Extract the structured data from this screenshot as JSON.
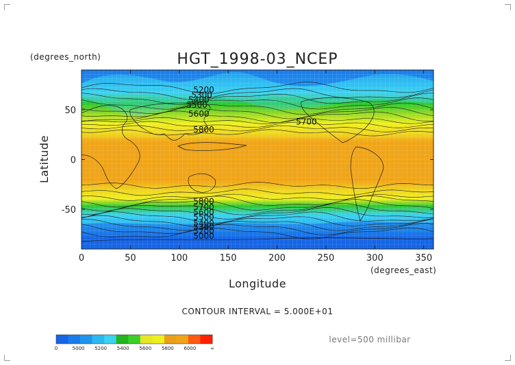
{
  "title": "HGT_1998-03_NCEP",
  "y_unit_label": "(degrees_north)",
  "x_unit_label": "(degrees_east)",
  "y_axis_title": "Latitude",
  "x_axis_title": "Longitude",
  "contour_interval_text": "CONTOUR INTERVAL = 5.000E+01",
  "level_text": "level=500 millibar",
  "colors": {
    "band_lt5000": "#1565e6",
    "band_5000_5200": "#1e96ee",
    "band_5200_5400": "#3cd2f0",
    "band_5400_5600": "#2ec82e",
    "band_5600_5800": "#f0f020",
    "band_5800_6000": "#f0a418",
    "band_gt6000": "#ff2200"
  },
  "chart_data": {
    "type": "heatmap",
    "title": "HGT_1998-03_NCEP",
    "xlabel": "Longitude",
    "ylabel": "Latitude",
    "x_unit": "(degrees_east)",
    "y_unit": "(degrees_north)",
    "xlim": [
      0,
      360
    ],
    "ylim": [
      -90,
      90
    ],
    "x_ticks": [
      "0",
      "50",
      "100",
      "150",
      "200",
      "250",
      "300",
      "350"
    ],
    "y_ticks": [
      "50",
      "0",
      "-50"
    ],
    "contour_interval": 50,
    "level": "500 millibar",
    "colorbar": {
      "tick_labels": [
        "0",
        "5000",
        "5200",
        "5400",
        "5600",
        "5800",
        "6000",
        "∞"
      ],
      "bands": [
        {
          "from": 0,
          "to": 5000,
          "color": "#1565e6"
        },
        {
          "from": 5000,
          "to": 5100,
          "color": "#1a7cea"
        },
        {
          "from": 5100,
          "to": 5200,
          "color": "#1e96ee"
        },
        {
          "from": 5200,
          "to": 5300,
          "color": "#2cb8f0"
        },
        {
          "from": 5300,
          "to": 5400,
          "color": "#3cd2f0"
        },
        {
          "from": 5400,
          "to": 5500,
          "color": "#23b41e"
        },
        {
          "from": 5500,
          "to": 5600,
          "color": "#3ad028"
        },
        {
          "from": 5600,
          "to": 5700,
          "color": "#e6e628"
        },
        {
          "from": 5700,
          "to": 5800,
          "color": "#f0f020"
        },
        {
          "from": 5800,
          "to": 5900,
          "color": "#eba01a"
        },
        {
          "from": 5900,
          "to": 6000,
          "color": "#f0a418"
        },
        {
          "from": 6000,
          "to": 6100,
          "color": "#ff5a10"
        },
        {
          "from": 6100,
          "to": "∞",
          "color": "#ff2200"
        }
      ]
    },
    "contour_labels": [
      {
        "text": "5200",
        "lon": 125,
        "lat": 70
      },
      {
        "text": "5300",
        "lon": 123,
        "lat": 65
      },
      {
        "text": "5400",
        "lon": 120,
        "lat": 60
      },
      {
        "text": "5500",
        "lon": 118,
        "lat": 55
      },
      {
        "text": "5600",
        "lon": 120,
        "lat": 46
      },
      {
        "text": "5700",
        "lon": 230,
        "lat": 38
      },
      {
        "text": "5800",
        "lon": 125,
        "lat": 30
      },
      {
        "text": "5800",
        "lon": 125,
        "lat": -42
      },
      {
        "text": "5700",
        "lon": 125,
        "lat": -48
      },
      {
        "text": "5600",
        "lon": 125,
        "lat": -53
      },
      {
        "text": "5500",
        "lon": 125,
        "lat": -58
      },
      {
        "text": "5400",
        "lon": 125,
        "lat": -64
      },
      {
        "text": "5300",
        "lon": 125,
        "lat": -68
      },
      {
        "text": "5200",
        "lon": 125,
        "lat": -72
      },
      {
        "text": "5000",
        "lon": 125,
        "lat": -77
      }
    ]
  }
}
